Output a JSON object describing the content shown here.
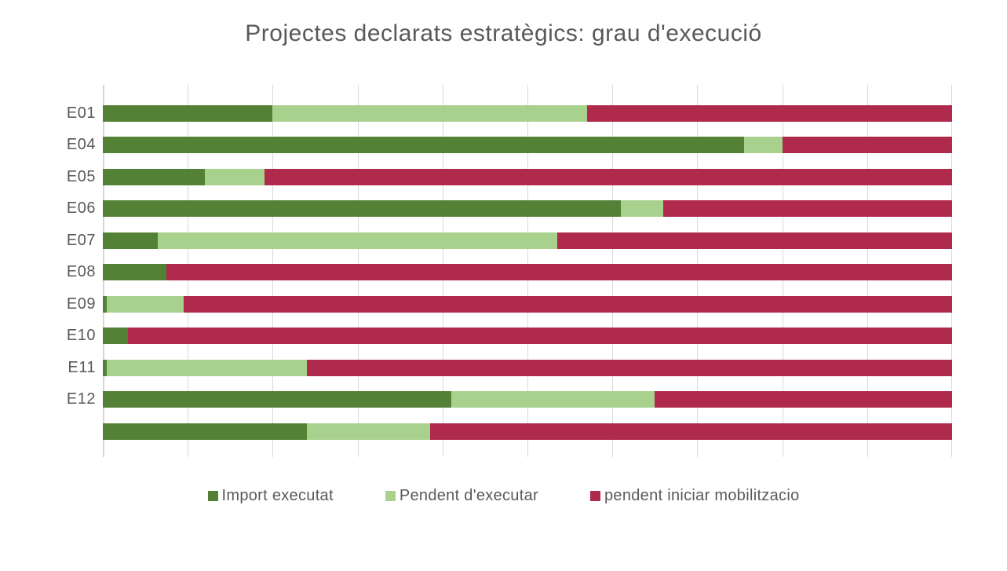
{
  "chart": {
    "title": "Projectes declarats estratègics: grau d'execució"
  },
  "chart_data": {
    "type": "bar",
    "orientation": "horizontal",
    "stacked": true,
    "units": "percent of total (100% stacked)",
    "title": "Projectes declarats estratègics: grau d'execució",
    "xlabel": "",
    "ylabel": "",
    "xlim": [
      0,
      100
    ],
    "gridlines_every": 10,
    "grid": "vertical-light-gray",
    "legend_position": "bottom",
    "categories": [
      "E01",
      "E04",
      "E05",
      "E06",
      "E07",
      "E08",
      "E09",
      "E10",
      "E11",
      "E12",
      ""
    ],
    "series": [
      {
        "name": "Import executat",
        "color": "#538135",
        "values": [
          20,
          75.5,
          12,
          61,
          6.5,
          7.5,
          0.5,
          3,
          0.5,
          41,
          24
        ]
      },
      {
        "name": "Pendent d'executar",
        "color": "#a9d18e",
        "values": [
          37,
          4.5,
          7,
          5,
          47,
          0,
          9,
          0,
          23.5,
          24,
          14.5
        ]
      },
      {
        "name": "pendent iniciar mobilitzacio",
        "color": "#b02a4c",
        "values": [
          43,
          20,
          81,
          34,
          46.5,
          92.5,
          90.5,
          97,
          76,
          35,
          61.5
        ]
      }
    ]
  },
  "colors": {
    "background": "#ffffff",
    "grid": "#d9d9d9",
    "text": "#595959"
  }
}
